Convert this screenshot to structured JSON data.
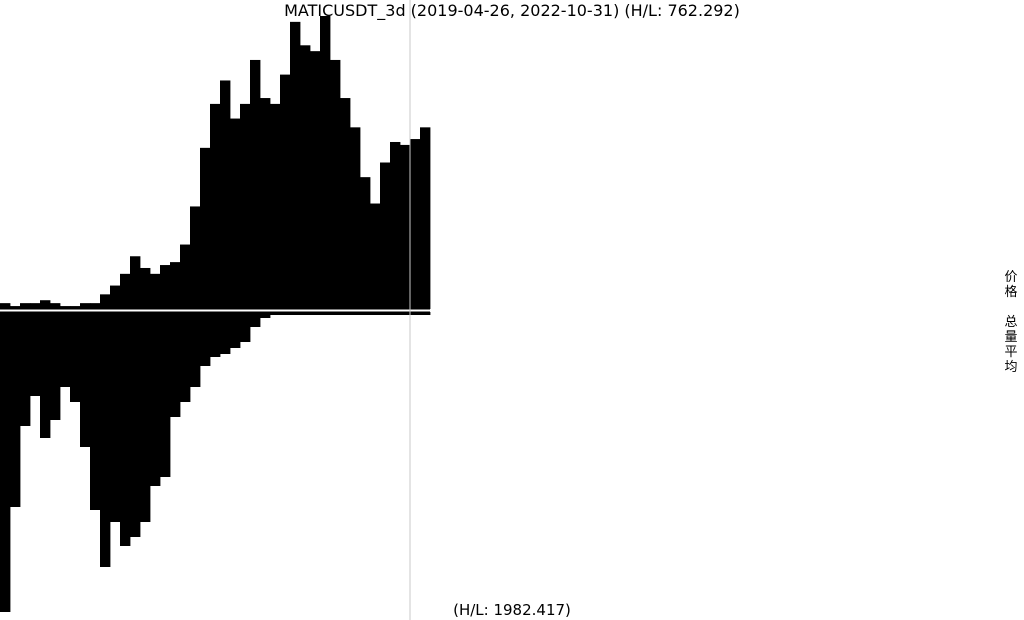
{
  "chart_data": {
    "type": "bar",
    "title": "MATICUSDT_3d (2019-04-26, 2022-10-31) (H/L: 762.292)",
    "bottom_label": "(H/L: 1982.417)",
    "date_range": [
      "2019-04-26",
      "2022-10-31"
    ],
    "interval": "3d",
    "legend": [
      "价格",
      "总量平均"
    ],
    "panels": [
      {
        "name": "价格",
        "orientation": "up",
        "hl_ratio": 762.292,
        "relative_values": [
          0.02,
          0.01,
          0.02,
          0.02,
          0.03,
          0.02,
          0.01,
          0.01,
          0.02,
          0.02,
          0.05,
          0.08,
          0.12,
          0.18,
          0.14,
          0.12,
          0.15,
          0.16,
          0.22,
          0.35,
          0.55,
          0.7,
          0.78,
          0.65,
          0.7,
          0.85,
          0.72,
          0.7,
          0.8,
          0.98,
          0.9,
          0.88,
          1.0,
          0.85,
          0.72,
          0.62,
          0.45,
          0.36,
          0.5,
          0.57,
          0.56,
          0.58,
          0.62
        ]
      },
      {
        "name": "总量平均",
        "orientation": "down",
        "hl_ratio": 1982.417,
        "relative_values": [
          1.0,
          0.65,
          0.38,
          0.28,
          0.42,
          0.36,
          0.25,
          0.3,
          0.45,
          0.66,
          0.85,
          0.7,
          0.78,
          0.75,
          0.7,
          0.58,
          0.55,
          0.35,
          0.3,
          0.25,
          0.18,
          0.15,
          0.14,
          0.12,
          0.1,
          0.05,
          0.02,
          0.01,
          0.01,
          0.01,
          0.01,
          0.01,
          0.01,
          0.01,
          0.01,
          0.01,
          0.01,
          0.01,
          0.01,
          0.01,
          0.01,
          0.01,
          0.01
        ]
      }
    ],
    "marker": {
      "style": "vertical-line",
      "color": "#c8c8c8"
    }
  }
}
